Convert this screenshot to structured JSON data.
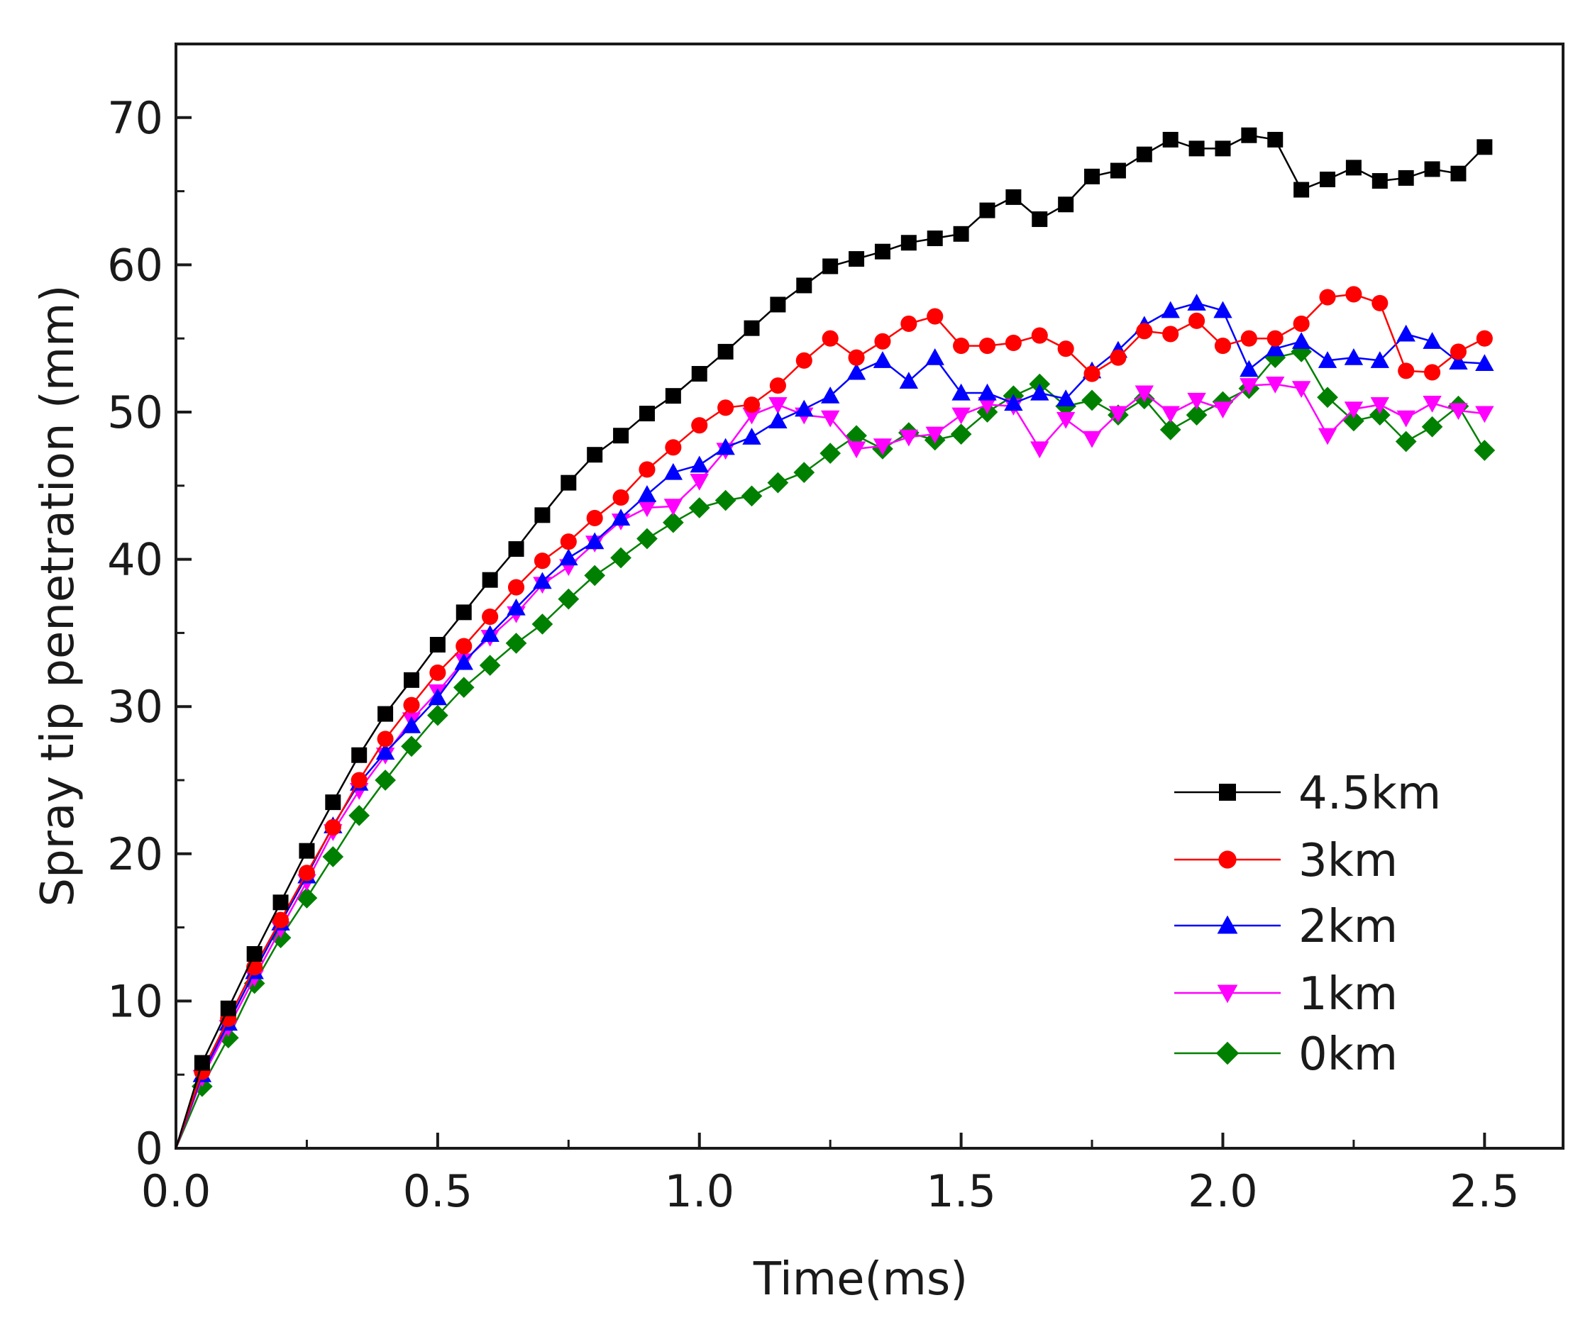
{
  "chart_data": {
    "type": "line",
    "xlabel": "Time(ms)",
    "ylabel": "Spray tip penetration (mm)",
    "xlim": [
      0,
      2.65
    ],
    "ylim": [
      0,
      75
    ],
    "xticks": [
      0.0,
      0.5,
      1.0,
      1.5,
      2.0,
      2.5
    ],
    "xtick_labels": [
      "0.0",
      "0.5",
      "1.0",
      "1.5",
      "2.0",
      "2.5"
    ],
    "yticks": [
      0,
      10,
      20,
      30,
      40,
      50,
      60,
      70
    ],
    "ytick_labels": [
      "0",
      "10",
      "20",
      "30",
      "40",
      "50",
      "60",
      "70"
    ],
    "grid": false,
    "legend_position": "bottom-right",
    "x": [
      0,
      0.05,
      0.1,
      0.15,
      0.2,
      0.25,
      0.3,
      0.35,
      0.4,
      0.45,
      0.5,
      0.55,
      0.6,
      0.65,
      0.7,
      0.75,
      0.8,
      0.85,
      0.9,
      0.95,
      1.0,
      1.05,
      1.1,
      1.15,
      1.2,
      1.25,
      1.3,
      1.35,
      1.4,
      1.45,
      1.5,
      1.55,
      1.6,
      1.65,
      1.7,
      1.75,
      1.8,
      1.85,
      1.9,
      1.95,
      2.0,
      2.05,
      2.1,
      2.15,
      2.2,
      2.25,
      2.3,
      2.35,
      2.4,
      2.45,
      2.5
    ],
    "series": [
      {
        "name": "4.5km",
        "color": "#000000",
        "marker": "square",
        "values": [
          0,
          5.8,
          9.5,
          13.2,
          16.7,
          20.2,
          23.5,
          26.7,
          29.5,
          31.8,
          34.2,
          36.4,
          38.6,
          40.7,
          43.0,
          45.2,
          47.1,
          48.4,
          49.9,
          51.1,
          52.6,
          54.1,
          55.7,
          57.3,
          58.6,
          59.9,
          60.4,
          60.9,
          61.5,
          61.8,
          62.1,
          63.7,
          64.6,
          63.1,
          64.1,
          66.0,
          66.4,
          67.5,
          68.5,
          67.9,
          67.9,
          68.8,
          68.5,
          65.1,
          65.8,
          66.6,
          65.7,
          65.9,
          66.5,
          66.2,
          68.0
        ]
      },
      {
        "name": "3km",
        "color": "#ff0000",
        "marker": "circle",
        "values": [
          0,
          5.2,
          8.8,
          12.3,
          15.5,
          18.7,
          21.8,
          25.0,
          27.8,
          30.1,
          32.3,
          34.1,
          36.1,
          38.1,
          39.9,
          41.2,
          42.8,
          44.2,
          46.1,
          47.6,
          49.1,
          50.3,
          50.5,
          51.8,
          53.5,
          55.0,
          53.7,
          54.8,
          56.0,
          56.5,
          54.5,
          54.5,
          54.7,
          55.2,
          54.3,
          52.6,
          53.7,
          55.5,
          55.3,
          56.2,
          54.5,
          55.0,
          55.0,
          56.0,
          57.8,
          58.0,
          57.4,
          52.8,
          52.7,
          54.1,
          55.0
        ]
      },
      {
        "name": "2km",
        "color": "#0000ff",
        "marker": "triangle-up",
        "values": [
          0,
          5.0,
          8.5,
          12.0,
          15.3,
          18.5,
          21.9,
          24.8,
          26.9,
          28.7,
          30.6,
          33.0,
          34.9,
          36.7,
          38.5,
          40.1,
          41.2,
          42.8,
          44.4,
          45.9,
          46.4,
          47.6,
          48.3,
          49.4,
          50.2,
          51.1,
          52.7,
          53.5,
          52.1,
          53.7,
          51.3,
          51.3,
          50.6,
          51.3,
          50.9,
          52.8,
          54.2,
          55.9,
          56.9,
          57.4,
          56.9,
          52.9,
          54.3,
          54.8,
          53.5,
          53.7,
          53.5,
          55.3,
          54.8,
          53.4,
          53.3
        ]
      },
      {
        "name": "1km",
        "color": "#ff00ff",
        "marker": "triangle-down",
        "values": [
          0,
          4.8,
          8.2,
          11.6,
          14.9,
          18.1,
          21.5,
          24.3,
          26.7,
          29.1,
          31.0,
          33.1,
          34.7,
          36.3,
          38.3,
          39.5,
          41.1,
          42.6,
          43.5,
          43.6,
          45.3,
          47.4,
          49.8,
          50.5,
          49.8,
          49.6,
          47.5,
          47.7,
          48.3,
          48.5,
          49.8,
          50.5,
          50.4,
          47.5,
          49.5,
          48.2,
          49.9,
          51.3,
          49.9,
          50.8,
          50.2,
          51.8,
          51.9,
          51.6,
          48.4,
          50.2,
          50.5,
          49.6,
          50.6,
          50.1,
          49.9
        ]
      },
      {
        "name": "0km",
        "color": "#008000",
        "marker": "diamond",
        "values": [
          0,
          4.2,
          7.5,
          11.2,
          14.3,
          17.0,
          19.8,
          22.6,
          25.0,
          27.3,
          29.4,
          31.3,
          32.8,
          34.3,
          35.6,
          37.3,
          38.9,
          40.1,
          41.4,
          42.5,
          43.5,
          44.0,
          44.3,
          45.2,
          45.9,
          47.2,
          48.4,
          47.5,
          48.6,
          48.1,
          48.5,
          50.0,
          51.1,
          51.9,
          50.4,
          50.8,
          49.8,
          50.9,
          48.8,
          49.8,
          50.7,
          51.6,
          53.7,
          54.1,
          51.0,
          49.4,
          49.8,
          48.0,
          49.0,
          50.4,
          47.4
        ]
      }
    ]
  }
}
